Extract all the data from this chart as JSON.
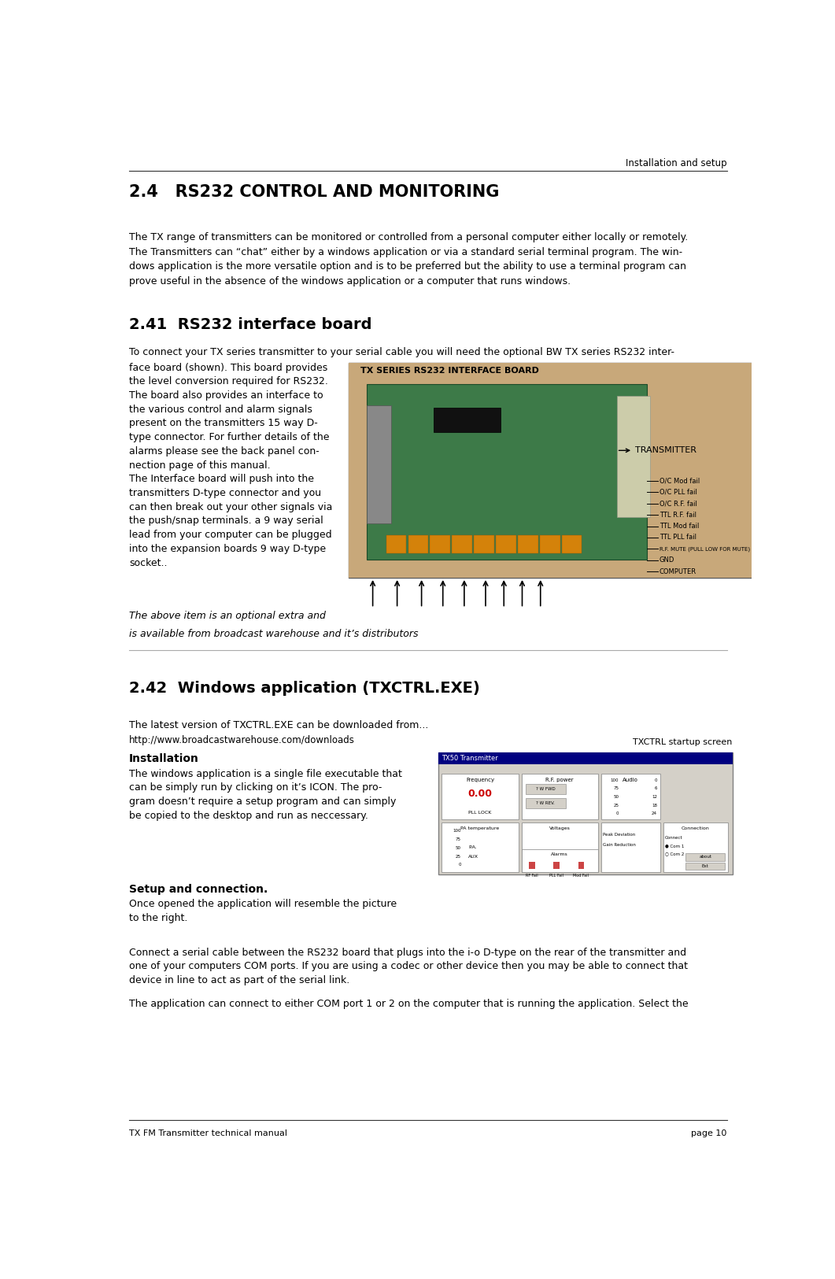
{
  "page_width": 10.61,
  "page_height": 16.25,
  "bg_color": "#ffffff",
  "header_text": "Installation and setup",
  "footer_left": "TX FM Transmitter technical manual",
  "footer_right": "page 10",
  "section_24_title": "2.4   RS232 CONTROL AND MONITORING",
  "section_24_body_lines": [
    "The TX range of transmitters can be monitored or controlled from a personal computer either locally or remotely.",
    "The Transmitters can “chat” either by a windows application or via a standard serial terminal program. The win-",
    "dows application is the more versatile option and is to be preferred but the ability to use a terminal program can",
    "prove useful in the absence of the windows application or a computer that runs windows."
  ],
  "section_241_title": "2.41  RS232 interface board",
  "section_241_intro": "To connect your TX series transmitter to your serial cable you will need the optional BW TX series RS232 inter-",
  "section_241_left_lines": [
    "face board (shown). This board provides",
    "the level conversion required for RS232.",
    "The board also provides an interface to",
    "the various control and alarm signals",
    "present on the transmitters 15 way D-",
    "type connector. For further details of the",
    "alarms please see the back panel con-",
    "nection page of this manual.",
    "The Interface board will push into the",
    "transmitters D-type connector and you",
    "can then break out your other signals via",
    "the push/snap terminals. a 9 way serial",
    "lead from your computer can be plugged",
    "into the expansion boards 9 way D-type",
    "socket.."
  ],
  "section_241_italic_lines": [
    "The above item is an optional extra and",
    "is available from broadcast warehouse and it’s distributors"
  ],
  "board_title": "TX SERIES RS232 INTERFACE BOARD",
  "board_label_transmitter": "TRANSMITTER",
  "board_labels_right": [
    "O/C Mod fail",
    "O/C PLL fail",
    "O/C R.F. fail",
    "TTL R.F. fail",
    "TTL Mod fail",
    "TTL PLL fail",
    "R.F. MUTE (PULL LOW FOR MUTE)",
    "GND",
    "COMPUTER"
  ],
  "section_242_title": "2.42  Windows application (TXCTRL.EXE)",
  "section_242_body1": "The latest version of TXCTRL.EXE can be downloaded from...",
  "section_242_url": "http://www.broadcastwarehouse.com/downloads",
  "section_242_install_title": "Installation",
  "section_242_screen_title": "TXCTRL startup screen",
  "section_242_install_lines": [
    "The windows application is a single file executable that",
    "can be simply run by clicking on it’s ICON. The pro-",
    "gram doesn’t require a setup program and can simply",
    "be copied to the desktop and run as neccessary."
  ],
  "section_242_setup_title": "Setup and connection.",
  "section_242_setup_lines": [
    "Once opened the application will resemble the picture",
    "to the right."
  ],
  "section_242_connect_lines": [
    "Connect a serial cable between the RS232 board that plugs into the i-o D-type on the rear of the transmitter and",
    "one of your computers COM ports. If you are using a codec or other device then you may be able to connect that",
    "device in line to act as part of the serial link."
  ],
  "section_242_select": "The application can connect to either COM port 1 or 2 on the computer that is running the application. Select the",
  "lm": 0.038,
  "rm": 0.962,
  "text_color": "#000000"
}
